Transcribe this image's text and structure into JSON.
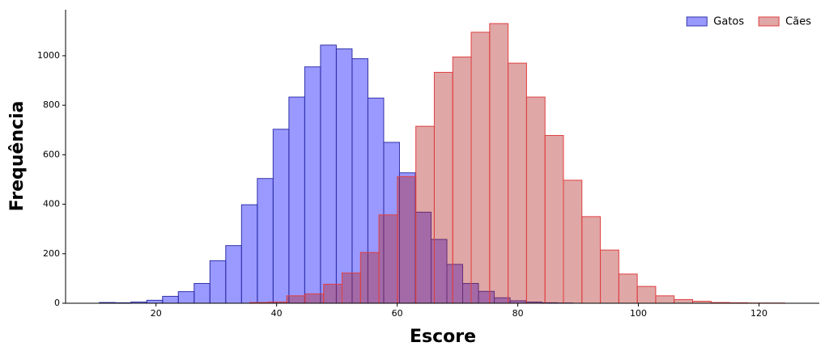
{
  "chart_data": {
    "type": "histogram",
    "xlabel": "Escore",
    "ylabel": "Frequência",
    "xlim": [
      5,
      130
    ],
    "ylim": [
      0,
      1186
    ],
    "xticks": [
      20,
      40,
      60,
      80,
      100,
      120
    ],
    "yticks": [
      0,
      200,
      400,
      600,
      800,
      1000
    ],
    "legend": "upper right",
    "series": [
      {
        "name": "Gatos",
        "color": "#0000ff",
        "edgecolor": "#3333aa",
        "opacity": 0.4,
        "bins": [
          10.6,
          13.22,
          15.84,
          18.46,
          21.08,
          23.7,
          26.32,
          28.94,
          31.56,
          34.18,
          36.8,
          39.42,
          42.04,
          44.66,
          47.28,
          49.9,
          52.52,
          55.14,
          57.76,
          60.38,
          63.0,
          65.62,
          68.24,
          70.86,
          73.48,
          76.1,
          78.72,
          81.34,
          83.96,
          86.58,
          89.2
        ],
        "values": [
          3,
          2,
          5,
          12,
          28,
          47,
          80,
          172,
          233,
          398,
          504,
          703,
          833,
          955,
          1043,
          1028,
          988,
          829,
          650,
          527,
          368,
          258,
          157,
          80,
          48,
          22,
          10,
          5,
          2,
          1
        ]
      },
      {
        "name": "Cães",
        "color": "#b22222",
        "edgecolor": "#e04040",
        "opacity": 0.4,
        "bins": [
          35.55,
          38.61,
          41.67,
          44.73,
          47.79,
          50.85,
          53.91,
          56.97,
          60.03,
          63.09,
          66.15,
          69.21,
          72.27,
          75.33,
          78.39,
          81.45,
          84.51,
          87.57,
          90.63,
          93.69,
          96.75,
          99.81,
          102.87,
          105.93,
          108.99,
          112.05,
          115.11,
          118.17,
          121.23,
          124.29
        ],
        "values": [
          3,
          5,
          30,
          38,
          77,
          122,
          205,
          357,
          512,
          715,
          933,
          995,
          1095,
          1130,
          970,
          833,
          678,
          497,
          350,
          215,
          118,
          68,
          30,
          15,
          8,
          3,
          2,
          1,
          1
        ]
      }
    ]
  }
}
